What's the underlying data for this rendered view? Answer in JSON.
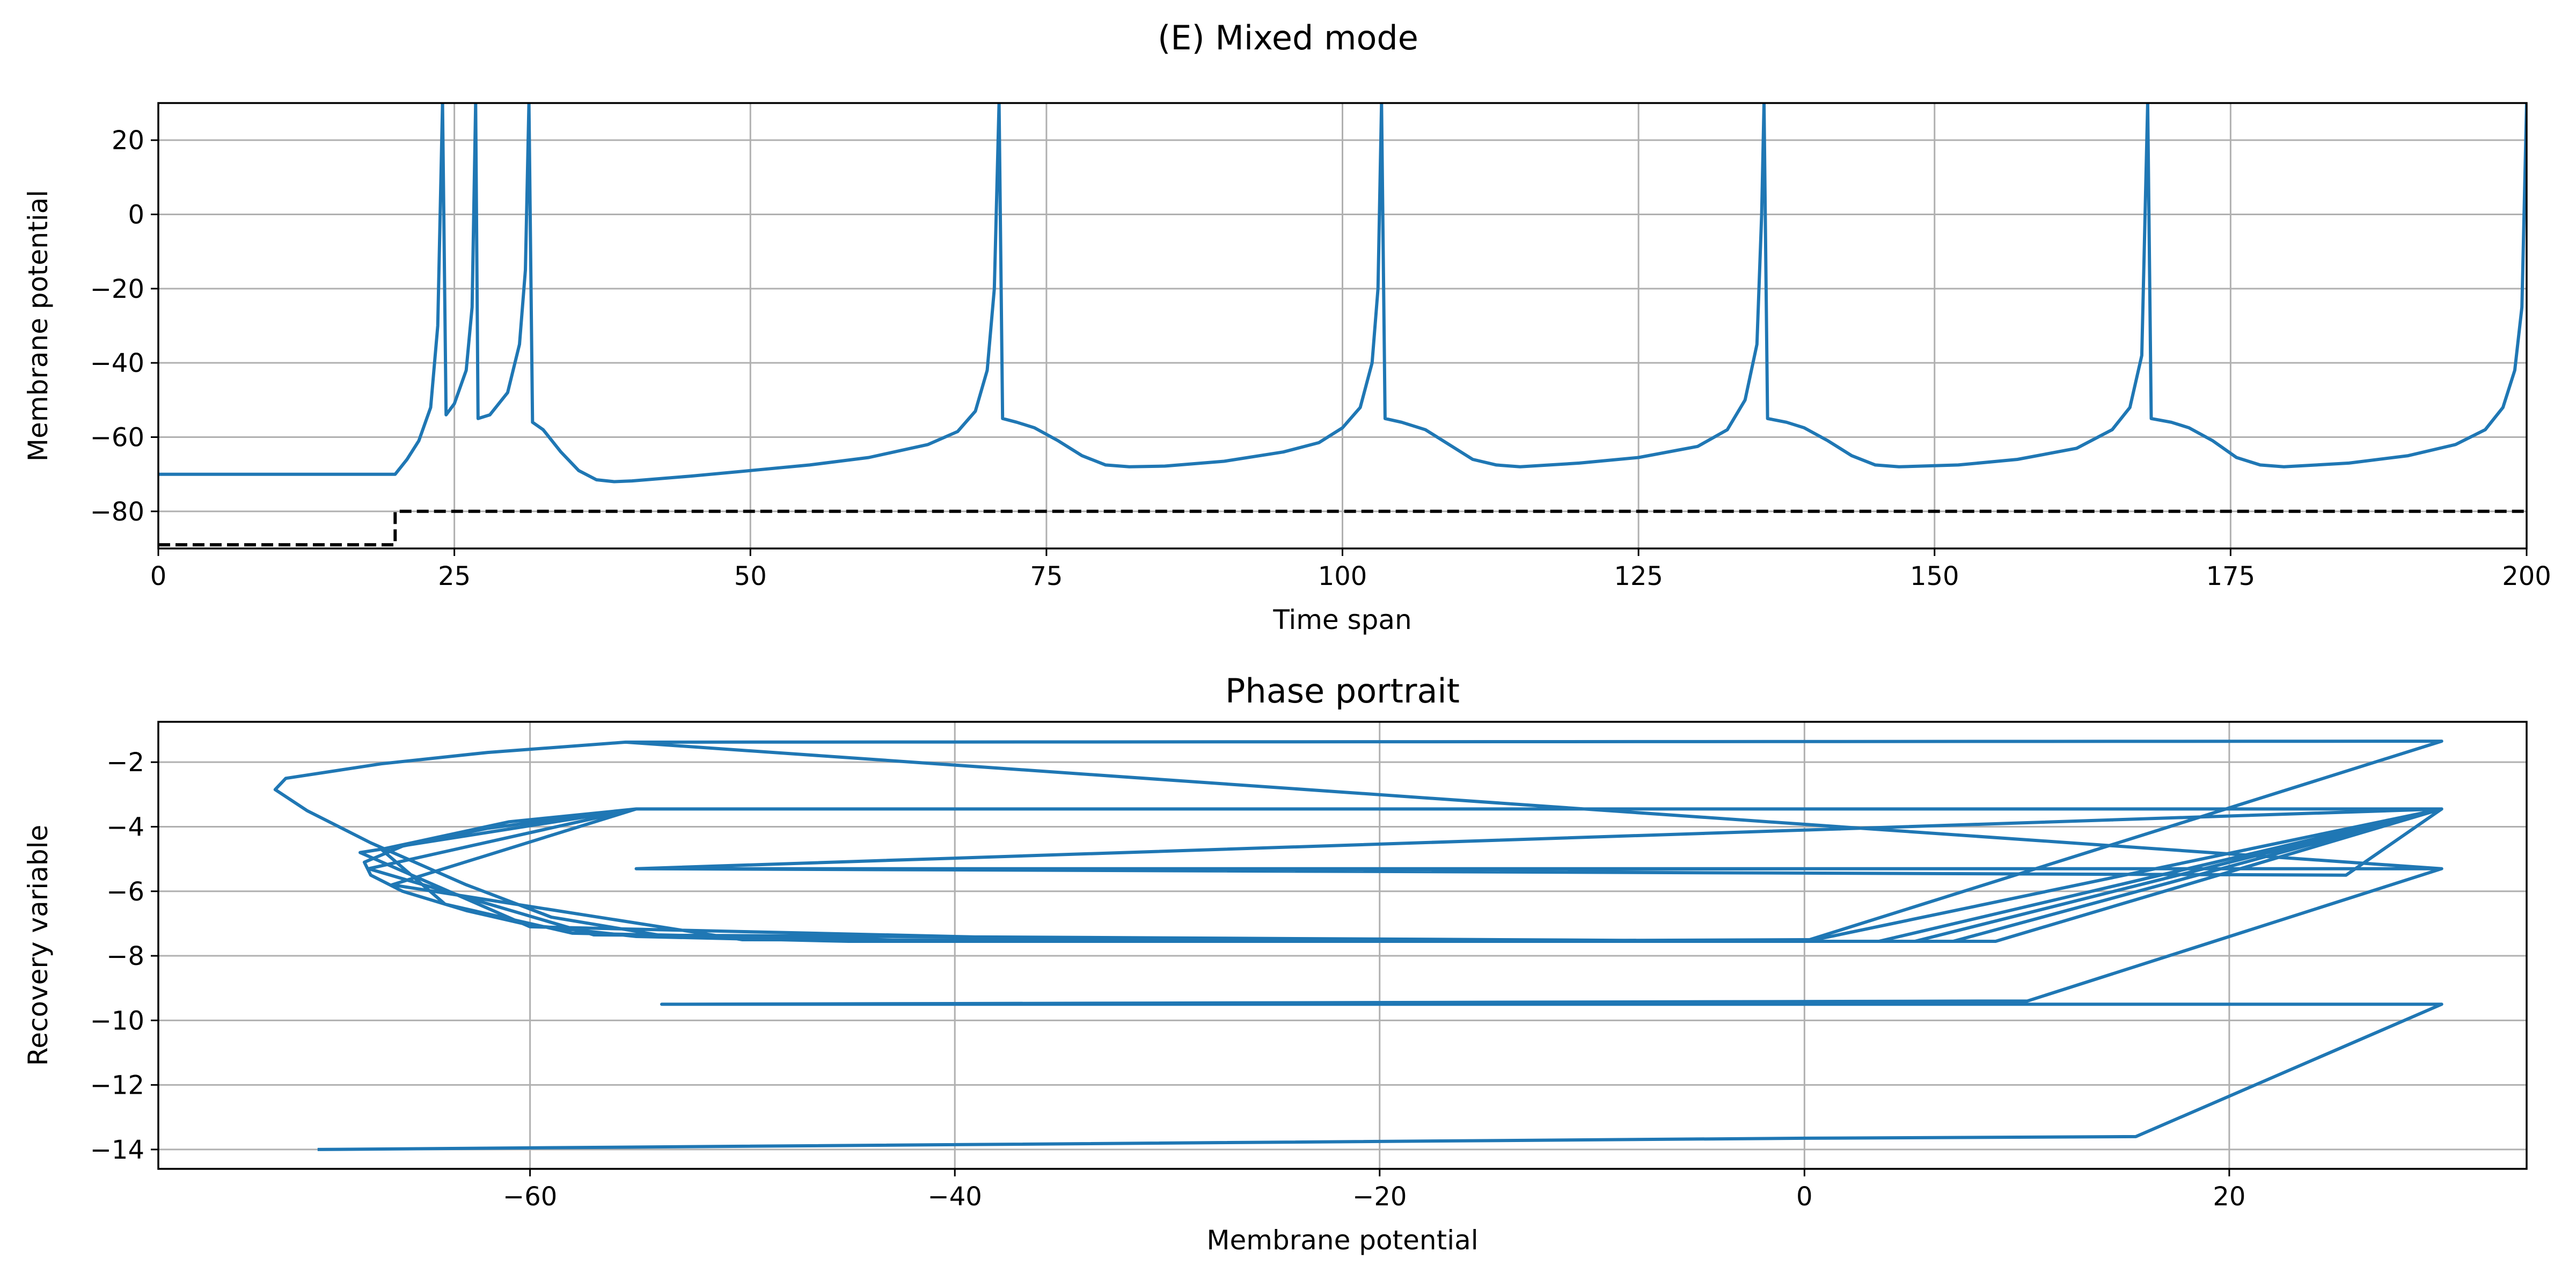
{
  "figure": {
    "suptitle": "(E) Mixed mode"
  },
  "chart_data": [
    {
      "type": "line",
      "title": "",
      "xlabel": "Time span",
      "ylabel": "Membrane potential",
      "xlim": [
        0,
        200
      ],
      "ylim": [
        -90,
        30
      ],
      "xticks": [
        0,
        25,
        50,
        75,
        100,
        125,
        150,
        175,
        200
      ],
      "yticks": [
        -80,
        -60,
        -40,
        -20,
        0,
        20
      ],
      "grid": true,
      "series": [
        {
          "color": "#1f77b4",
          "style": "solid",
          "points": [
            [
              0,
              -70
            ],
            [
              20,
              -70
            ],
            [
              21,
              -66
            ],
            [
              22,
              -61
            ],
            [
              23,
              -52
            ],
            [
              23.6,
              -30
            ],
            [
              24,
              30
            ],
            [
              24.3,
              -54
            ],
            [
              25,
              -51
            ],
            [
              26,
              -42
            ],
            [
              26.5,
              -25
            ],
            [
              26.8,
              30
            ],
            [
              27,
              -55
            ],
            [
              28,
              -54
            ],
            [
              29.5,
              -48
            ],
            [
              30.5,
              -35
            ],
            [
              31,
              -15
            ],
            [
              31.3,
              30
            ],
            [
              31.6,
              -56
            ],
            [
              32.5,
              -58
            ],
            [
              34,
              -64
            ],
            [
              35.5,
              -69
            ],
            [
              37,
              -71.5
            ],
            [
              38.5,
              -72
            ],
            [
              40,
              -71.8
            ],
            [
              45,
              -70.5
            ],
            [
              50,
              -69
            ],
            [
              55,
              -67.5
            ],
            [
              60,
              -65.5
            ],
            [
              65,
              -62
            ],
            [
              67.5,
              -58.5
            ],
            [
              69,
              -53
            ],
            [
              70,
              -42
            ],
            [
              70.6,
              -20
            ],
            [
              71,
              30
            ],
            [
              71.3,
              -55
            ],
            [
              72.5,
              -56
            ],
            [
              74,
              -57.5
            ],
            [
              76,
              -61
            ],
            [
              78,
              -65
            ],
            [
              80,
              -67.5
            ],
            [
              82,
              -68
            ],
            [
              85,
              -67.8
            ],
            [
              90,
              -66.5
            ],
            [
              95,
              -64
            ],
            [
              98,
              -61.5
            ],
            [
              100,
              -57.5
            ],
            [
              101.5,
              -52
            ],
            [
              102.5,
              -40
            ],
            [
              103,
              -20
            ],
            [
              103.3,
              30
            ],
            [
              103.6,
              -55
            ],
            [
              105,
              -56
            ],
            [
              107,
              -58
            ],
            [
              109,
              -62
            ],
            [
              111,
              -66
            ],
            [
              113,
              -67.5
            ],
            [
              115,
              -68
            ],
            [
              120,
              -67
            ],
            [
              125,
              -65.5
            ],
            [
              130,
              -62.5
            ],
            [
              132.5,
              -58
            ],
            [
              134,
              -50
            ],
            [
              135,
              -35
            ],
            [
              135.4,
              0
            ],
            [
              135.6,
              30
            ],
            [
              135.9,
              -55
            ],
            [
              137.5,
              -56
            ],
            [
              139,
              -57.5
            ],
            [
              141,
              -61
            ],
            [
              143,
              -65
            ],
            [
              145,
              -67.5
            ],
            [
              147,
              -68
            ],
            [
              152,
              -67.5
            ],
            [
              157,
              -66
            ],
            [
              162,
              -63
            ],
            [
              165,
              -58
            ],
            [
              166.5,
              -52
            ],
            [
              167.5,
              -38
            ],
            [
              168,
              30
            ],
            [
              168.3,
              -55
            ],
            [
              170,
              -56
            ],
            [
              171.5,
              -57.5
            ],
            [
              173.5,
              -61
            ],
            [
              175.5,
              -65.5
            ],
            [
              177.5,
              -67.5
            ],
            [
              179.5,
              -68
            ],
            [
              185,
              -67
            ],
            [
              190,
              -65
            ],
            [
              194,
              -62
            ],
            [
              196.5,
              -58
            ],
            [
              198,
              -52
            ],
            [
              199,
              -42
            ],
            [
              199.6,
              -25
            ],
            [
              200,
              30
            ]
          ]
        },
        {
          "color": "#000000",
          "style": "dashed",
          "points": [
            [
              0,
              -89
            ],
            [
              20,
              -89
            ],
            [
              20,
              -80
            ],
            [
              200,
              -80
            ]
          ]
        }
      ]
    },
    {
      "type": "line",
      "title": "Phase portrait",
      "xlabel": "Membrane potential",
      "ylabel": "Recovery variable",
      "xlim": [
        -77.5,
        34
      ],
      "ylim": [
        -14.6,
        -0.75
      ],
      "xticks": [
        -60,
        -40,
        -20,
        0,
        20
      ],
      "yticks": [
        -14,
        -12,
        -10,
        -8,
        -6,
        -4,
        -2
      ],
      "grid": true,
      "series": [
        {
          "color": "#1f77b4",
          "style": "solid",
          "points": [
            [
              -70,
              -14
            ],
            [
              -50,
              -13.9
            ],
            [
              0,
              -13.65
            ],
            [
              15.6,
              -13.6
            ],
            [
              30,
              -9.5
            ],
            [
              -53.8,
              -9.5
            ],
            [
              10.5,
              -9.4
            ],
            [
              30,
              -5.3
            ],
            [
              -55,
              -5.3
            ],
            [
              25.5,
              -5.5
            ],
            [
              30,
              -3.45
            ],
            [
              -55,
              -3.45
            ],
            [
              -58,
              -3.7
            ],
            [
              -62,
              -4.05
            ],
            [
              -66,
              -4.6
            ],
            [
              -67.8,
              -5.1
            ],
            [
              -67.5,
              -5.5
            ],
            [
              -66,
              -6
            ],
            [
              -63,
              -6.6
            ],
            [
              -60,
              -7.05
            ],
            [
              -55,
              -7.4
            ],
            [
              -45,
              -7.55
            ],
            [
              -20,
              -7.55
            ],
            [
              0,
              -7.5
            ],
            [
              0.5,
              -7.5
            ],
            [
              30,
              -3.45
            ],
            [
              -55,
              -3.45
            ],
            [
              -61,
              -3.85
            ],
            [
              -67,
              -4.7
            ],
            [
              -64,
              -6.4
            ],
            [
              -58,
              -7.3
            ],
            [
              -40,
              -7.55
            ],
            [
              0,
              -7.55
            ],
            [
              3.5,
              -7.55
            ],
            [
              30,
              -3.45
            ],
            [
              -55,
              -3.45
            ],
            [
              -68,
              -4.8
            ],
            [
              -60,
              -7.1
            ],
            [
              -30,
              -7.55
            ],
            [
              5.2,
              -7.55
            ],
            [
              30,
              -3.45
            ],
            [
              -55,
              -3.45
            ],
            [
              -66.5,
              -5.8
            ],
            [
              -50,
              -7.5
            ],
            [
              0,
              -7.55
            ],
            [
              7,
              -7.55
            ],
            [
              30,
              -3.45
            ],
            [
              -55,
              -3.45
            ],
            [
              -67.6,
              -5.3
            ],
            [
              -57,
              -7.35
            ],
            [
              0,
              -7.55
            ],
            [
              9,
              -7.55
            ],
            [
              30,
              -3.45
            ],
            [
              -55,
              -5.3
            ],
            [
              -30,
              -5.35
            ],
            [
              0,
              -5.3
            ],
            [
              30,
              -5.3
            ],
            [
              -55.5,
              -1.38
            ],
            [
              -62,
              -1.7
            ],
            [
              -67,
              -2.05
            ],
            [
              -71.5,
              -2.5
            ],
            [
              -72,
              -2.85
            ],
            [
              -70.5,
              -3.5
            ],
            [
              -67.5,
              -4.5
            ],
            [
              -63,
              -5.8
            ],
            [
              -59,
              -6.8
            ],
            [
              -54,
              -7.35
            ],
            [
              -40,
              -7.55
            ],
            [
              0,
              -7.55
            ],
            [
              30,
              -1.35
            ],
            [
              -55.5,
              -1.38
            ]
          ]
        }
      ]
    }
  ]
}
